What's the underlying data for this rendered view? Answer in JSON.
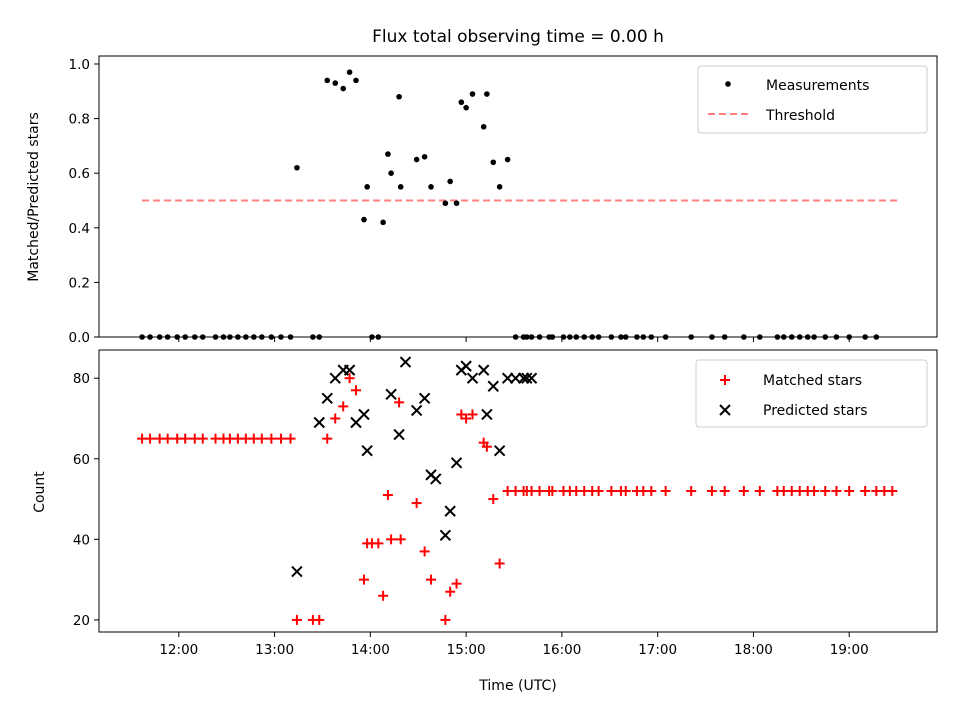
{
  "chart_data": [
    {
      "type": "scatter",
      "title": "Flux total observing time = 0.00 h",
      "xlabel": "",
      "ylabel": "Matched/Predicted stars",
      "ylim": [
        0,
        1.0
      ],
      "yticks": [
        0.0,
        0.2,
        0.4,
        0.6,
        0.8,
        1.0
      ],
      "ytick_labels": [
        "0.0",
        "0.2",
        "0.4",
        "0.6",
        "0.8",
        "1.0"
      ],
      "xlim": [
        "11:10",
        "19:55"
      ],
      "legend_placement": "top-right",
      "colors": {
        "measurements": "#000000",
        "threshold": "#ff7f7f"
      },
      "series": [
        {
          "name": "Measurements",
          "marker": "dot",
          "x": [
            "11:37",
            "11:42",
            "11:48",
            "11:53",
            "11:59",
            "12:04",
            "12:10",
            "12:15",
            "12:23",
            "12:28",
            "12:32",
            "12:37",
            "12:42",
            "12:47",
            "12:52",
            "12:58",
            "13:04",
            "13:10",
            "13:14",
            "13:24",
            "13:28",
            "13:33",
            "13:38",
            "13:43",
            "13:47",
            "13:51",
            "13:56",
            "13:58",
            "14:01",
            "14:05",
            "14:08",
            "14:11",
            "14:13",
            "14:18",
            "14:19",
            "14:29",
            "14:34",
            "14:38",
            "14:47",
            "14:50",
            "14:54",
            "14:57",
            "15:00",
            "15:04",
            "15:11",
            "15:13",
            "15:17",
            "15:21",
            "15:26",
            "15:31",
            "15:36",
            "15:38",
            "15:41",
            "15:46",
            "15:52",
            "15:54",
            "16:01",
            "16:05",
            "16:09",
            "16:14",
            "16:19",
            "16:23",
            "16:31",
            "16:37",
            "16:40",
            "16:47",
            "16:51",
            "16:56",
            "17:05",
            "17:21",
            "17:34",
            "17:42",
            "17:54",
            "18:04",
            "18:15",
            "18:19",
            "18:24",
            "18:29",
            "18:34",
            "18:38",
            "18:45",
            "18:52",
            "19:00",
            "19:10",
            "19:17"
          ],
          "values": [
            0,
            0,
            0,
            0,
            0,
            0,
            0,
            0,
            0,
            0,
            0,
            0,
            0,
            0,
            0,
            0,
            0,
            0,
            0.62,
            0,
            0,
            0.94,
            0.93,
            0.91,
            0.97,
            0.94,
            0.43,
            0.55,
            0,
            0,
            0.42,
            0.67,
            0.6,
            0.88,
            0.55,
            0.65,
            0.66,
            0.55,
            0.49,
            0.57,
            0.49,
            0.86,
            0.84,
            0.89,
            0.77,
            0.89,
            0.64,
            0.55,
            0.65,
            0,
            0,
            0,
            0,
            0,
            0,
            0,
            0,
            0,
            0,
            0,
            0,
            0,
            0,
            0,
            0,
            0,
            0,
            0,
            0,
            0,
            0,
            0,
            0,
            0,
            0,
            0,
            0,
            0,
            0,
            0,
            0,
            0,
            0,
            0,
            0
          ]
        },
        {
          "name": "Threshold",
          "marker": "dashed-line",
          "x": [
            "11:37",
            "19:31"
          ],
          "values": [
            0.5,
            0.5
          ]
        }
      ]
    },
    {
      "type": "scatter",
      "title": "",
      "xlabel": "Time (UTC)",
      "ylabel": "Count",
      "ylim": [
        17,
        87
      ],
      "yticks": [
        20,
        40,
        60,
        80
      ],
      "ytick_labels": [
        "20",
        "40",
        "60",
        "80"
      ],
      "xlim": [
        "11:10",
        "19:55"
      ],
      "xticks": [
        "12:00",
        "13:00",
        "14:00",
        "15:00",
        "16:00",
        "17:00",
        "18:00",
        "19:00"
      ],
      "xtick_labels": [
        "12:00",
        "13:00",
        "14:00",
        "15:00",
        "16:00",
        "17:00",
        "18:00",
        "19:00"
      ],
      "legend_placement": "top-right",
      "colors": {
        "matched": "#ff0000",
        "predicted": "#000000"
      },
      "series": [
        {
          "name": "Matched stars",
          "marker": "plus",
          "x": [
            "11:37",
            "11:42",
            "11:48",
            "11:53",
            "11:59",
            "12:04",
            "12:10",
            "12:15",
            "12:23",
            "12:28",
            "12:32",
            "12:37",
            "12:42",
            "12:47",
            "12:52",
            "12:58",
            "13:04",
            "13:10",
            "13:14",
            "13:24",
            "13:28",
            "13:33",
            "13:38",
            "13:43",
            "13:47",
            "13:51",
            "13:56",
            "13:58",
            "14:01",
            "14:05",
            "14:08",
            "14:11",
            "14:13",
            "14:18",
            "14:19",
            "14:29",
            "14:34",
            "14:38",
            "14:47",
            "14:50",
            "14:54",
            "14:57",
            "15:00",
            "15:04",
            "15:11",
            "15:13",
            "15:17",
            "15:21",
            "15:26",
            "15:31",
            "15:36",
            "15:38",
            "15:41",
            "15:46",
            "15:52",
            "15:54",
            "16:01",
            "16:05",
            "16:09",
            "16:14",
            "16:19",
            "16:23",
            "16:31",
            "16:37",
            "16:40",
            "16:47",
            "16:51",
            "16:56",
            "17:05",
            "17:21",
            "17:34",
            "17:42",
            "17:54",
            "18:04",
            "18:15",
            "18:19",
            "18:24",
            "18:29",
            "18:34",
            "18:38",
            "18:45",
            "18:52",
            "19:00",
            "19:10",
            "19:17",
            "19:22",
            "19:27"
          ],
          "values": [
            65,
            65,
            65,
            65,
            65,
            65,
            65,
            65,
            65,
            65,
            65,
            65,
            65,
            65,
            65,
            65,
            65,
            65,
            20,
            20,
            20,
            65,
            70,
            73,
            80,
            77,
            30,
            39,
            39,
            39,
            26,
            51,
            40,
            74,
            40,
            49,
            37,
            30,
            20,
            27,
            29,
            71,
            70,
            71,
            64,
            63,
            50,
            34,
            52,
            52,
            52,
            52,
            52,
            52,
            52,
            52,
            52,
            52,
            52,
            52,
            52,
            52,
            52,
            52,
            52,
            52,
            52,
            52,
            52,
            52,
            52,
            52,
            52,
            52,
            52,
            52,
            52,
            52,
            52,
            52,
            52,
            52,
            52,
            52,
            52,
            52,
            52
          ]
        },
        {
          "name": "Predicted stars",
          "marker": "x",
          "x": [
            "13:14",
            "13:28",
            "13:33",
            "13:38",
            "13:43",
            "13:47",
            "13:51",
            "13:56",
            "13:58",
            "14:13",
            "14:18",
            "14:22",
            "14:29",
            "14:34",
            "14:38",
            "14:41",
            "14:47",
            "14:50",
            "14:54",
            "14:57",
            "15:00",
            "15:04",
            "15:11",
            "15:13",
            "15:17",
            "15:21",
            "15:26",
            "15:31",
            "15:36",
            "15:38",
            "15:41"
          ],
          "values": [
            32,
            69,
            75,
            80,
            82,
            82,
            69,
            71,
            62,
            76,
            66,
            84,
            72,
            75,
            56,
            55,
            41,
            47,
            59,
            82,
            83,
            80,
            82,
            71,
            78,
            62,
            80,
            80,
            80,
            80,
            80
          ]
        }
      ]
    }
  ]
}
